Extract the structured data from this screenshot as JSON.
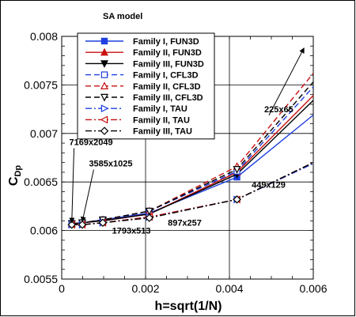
{
  "chart_data": {
    "type": "line",
    "title": "SA model",
    "xlabel": "h=sqrt(1/N)",
    "ylabel_main": "C",
    "ylabel_sub": "Dp",
    "xlim": [
      0,
      0.006
    ],
    "ylim": [
      0.0055,
      0.008
    ],
    "xticks": [
      0,
      0.002,
      0.004,
      0.006
    ],
    "xtick_labels": [
      "0",
      "0.002",
      "0.004",
      "0.006"
    ],
    "yticks": [
      0.0055,
      0.006,
      0.0065,
      0.007,
      0.0075,
      0.008
    ],
    "ytick_labels": [
      "0.0055",
      "0.006",
      "0.0065",
      "0.007",
      "0.0075",
      "0.008"
    ],
    "grid": true,
    "legend_position": "top-left",
    "series": [
      {
        "name": "Family I, FUN3D",
        "color": "#1f3fe0",
        "dash": "",
        "marker": "square-filled",
        "x": [
          0.00024,
          0.00049,
          0.00098,
          0.00209,
          0.00418,
          0.006
        ],
        "y": [
          0.00607,
          0.00608,
          0.00611,
          0.00618,
          0.00655,
          0.00719
        ]
      },
      {
        "name": "Family II, FUN3D",
        "color": "#c81010",
        "dash": "",
        "marker": "triangle-up-filled",
        "x": [
          0.00024,
          0.00049,
          0.00098,
          0.00209,
          0.00418,
          0.006
        ],
        "y": [
          0.00607,
          0.00608,
          0.0061,
          0.00617,
          0.0066,
          0.00739
        ]
      },
      {
        "name": "Family III, FUN3D",
        "color": "#000000",
        "dash": "",
        "marker": "triangle-down-filled",
        "x": [
          0.00024,
          0.00049,
          0.00098,
          0.00209,
          0.00418,
          0.006
        ],
        "y": [
          0.00607,
          0.00608,
          0.0061,
          0.00617,
          0.00658,
          0.00734
        ]
      },
      {
        "name": "Family I, CFL3D",
        "color": "#1f3fe0",
        "dash": "7,4",
        "marker": "square-open",
        "x": [
          0.00024,
          0.00049,
          0.00098,
          0.00209,
          0.00418,
          0.006
        ],
        "y": [
          0.00607,
          0.00608,
          0.00611,
          0.0062,
          0.00661,
          0.00748
        ]
      },
      {
        "name": "Family II, CFL3D",
        "color": "#c81010",
        "dash": "7,4",
        "marker": "triangle-up-open",
        "x": [
          0.00024,
          0.00049,
          0.00098,
          0.00209,
          0.00418,
          0.006
        ],
        "y": [
          0.00607,
          0.00608,
          0.00611,
          0.0062,
          0.00666,
          0.00762
        ]
      },
      {
        "name": "Family III, CFL3D",
        "color": "#000000",
        "dash": "7,4",
        "marker": "triangle-down-open",
        "x": [
          0.00024,
          0.00049,
          0.00098,
          0.00209,
          0.00418,
          0.006
        ],
        "y": [
          0.00607,
          0.00608,
          0.00611,
          0.0062,
          0.00663,
          0.00753
        ]
      },
      {
        "name": "Family I, TAU",
        "color": "#1f3fe0",
        "dash": "8,3,2,3",
        "marker": "triangle-right-open",
        "x": [
          0.00024,
          0.00049,
          0.00098,
          0.00209,
          0.00418,
          0.006
        ],
        "y": [
          0.00606,
          0.00606,
          0.00608,
          0.00614,
          0.00632,
          0.00669
        ]
      },
      {
        "name": "Family II, TAU",
        "color": "#c81010",
        "dash": "8,3,2,3",
        "marker": "triangle-left-open",
        "x": [
          0.00024,
          0.00049,
          0.00098,
          0.00209,
          0.00418,
          0.006
        ],
        "y": [
          0.00606,
          0.00606,
          0.00608,
          0.00614,
          0.00632,
          0.0067
        ]
      },
      {
        "name": "Family III, TAU",
        "color": "#000000",
        "dash": "8,3,2,3",
        "marker": "diamond-open",
        "x": [
          0.00024,
          0.00049,
          0.00098,
          0.00209,
          0.00418,
          0.006
        ],
        "y": [
          0.00606,
          0.00606,
          0.00608,
          0.00613,
          0.00632,
          0.0067
        ]
      }
    ],
    "annotations": [
      {
        "text": "7169x2049",
        "label_x": 0.00018,
        "label_y": 0.00688,
        "arrow_to_x": 0.00024,
        "arrow_to_y": 0.00608
      },
      {
        "text": "3585x1025",
        "label_x": 0.00065,
        "label_y": 0.00666,
        "arrow_to_x": 0.00049,
        "arrow_to_y": 0.00609
      },
      {
        "text": "1793x513",
        "label_x": 0.0012,
        "label_y": 0.00597,
        "arrow_to_x": null,
        "arrow_to_y": null
      },
      {
        "text": "897x257",
        "label_x": 0.00253,
        "label_y": 0.00605,
        "arrow_to_x": null,
        "arrow_to_y": null
      },
      {
        "text": "449x129",
        "label_x": 0.00453,
        "label_y": 0.00644,
        "arrow_to_x": null,
        "arrow_to_y": null
      },
      {
        "text": "225x65",
        "label_x": 0.00483,
        "label_y": 0.00722,
        "arrow_to_x": 0.00578,
        "arrow_to_y": 0.00788
      }
    ]
  }
}
